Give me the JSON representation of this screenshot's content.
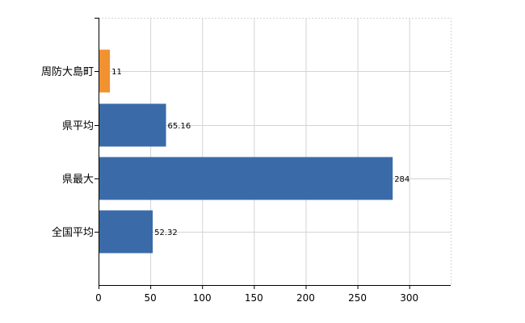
{
  "chart_data": {
    "type": "bar",
    "orientation": "horizontal",
    "title": "",
    "xlabel": "",
    "ylabel": "",
    "categories": [
      "周防大島町",
      "県平均",
      "県最大",
      "全国平均"
    ],
    "values": [
      11,
      65.16,
      284,
      52.32
    ],
    "value_labels": [
      "11",
      "65.16",
      "284",
      "52.32"
    ],
    "bar_colors": [
      "#F0922F",
      "#3A6BA8",
      "#3A6BA8",
      "#3A6BA8"
    ],
    "xlim": [
      0,
      340
    ],
    "x_ticks": [
      0,
      50,
      100,
      150,
      200,
      250,
      300
    ],
    "grid": true,
    "legend": "none"
  }
}
